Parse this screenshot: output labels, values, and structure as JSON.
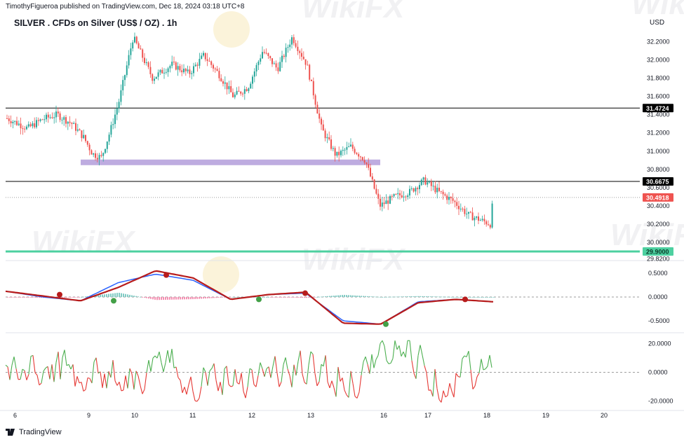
{
  "publisher_line": "TimothyFigueroa published on TradingView.com, Dec 18, 2024 03:18 UTC+8",
  "header": {
    "title": "SILVER . CFDs on Silver (US$ / OZ) . 1h",
    "currency": "USD"
  },
  "footer": {
    "brand": "TradingView"
  },
  "watermark": "WikiFX",
  "colors": {
    "up": "#26a69a",
    "down": "#ef5350",
    "zone": "#b39ddb",
    "support": "#4dd0a0",
    "macd": "#2962ff",
    "signal": "#b71c1c",
    "signal_up": "#43a047",
    "osc_up": "#4caf50",
    "osc_down": "#e53935",
    "price_badge": "#ef5350"
  },
  "chart_data": [
    {
      "type": "candlestick",
      "title": "SILVER . CFDs on Silver (US$ / OZ) . 1h",
      "x_ticks": [
        "6",
        "9",
        "10",
        "11",
        "12",
        "13",
        "16",
        "17",
        "18",
        "19",
        "20"
      ],
      "y_ticks": [
        "32.2000",
        "32.0000",
        "31.8000",
        "31.6000",
        "31.4000",
        "31.2000",
        "31.0000",
        "30.8000",
        "30.6000",
        "30.4000",
        "30.2000",
        "30.0000",
        "29.8200"
      ],
      "ylim": [
        29.8,
        32.35
      ],
      "horizontal_lines": [
        {
          "value": 31.4724,
          "label": "31.4724",
          "color": "#000000"
        },
        {
          "value": 30.6675,
          "label": "30.6675",
          "color": "#000000"
        },
        {
          "value": 29.9,
          "label": "29.9000",
          "color": "#4dd0a0"
        }
      ],
      "zone": {
        "from": 30.86,
        "to": 30.9
      },
      "last_price": {
        "value": 30.4918,
        "label": "30.4918"
      },
      "path_points": [
        {
          "x": "6",
          "y": 31.36
        },
        {
          "x": "6",
          "y": 31.25
        },
        {
          "x": "6",
          "y": 31.35
        },
        {
          "x": "6",
          "y": 31.4
        },
        {
          "x": "6",
          "y": 31.3
        },
        {
          "x": "9",
          "y": 31.15
        },
        {
          "x": "9",
          "y": 30.97
        },
        {
          "x": "9",
          "y": 30.93
        },
        {
          "x": "9",
          "y": 31.22
        },
        {
          "x": "9",
          "y": 31.55
        },
        {
          "x": "10",
          "y": 32.25
        },
        {
          "x": "10",
          "y": 31.8
        },
        {
          "x": "10",
          "y": 31.95
        },
        {
          "x": "11",
          "y": 31.85
        },
        {
          "x": "11",
          "y": 32.05
        },
        {
          "x": "11",
          "y": 31.85
        },
        {
          "x": "11",
          "y": 31.6
        },
        {
          "x": "12",
          "y": 31.7
        },
        {
          "x": "12",
          "y": 32.1
        },
        {
          "x": "12",
          "y": 31.9
        },
        {
          "x": "12",
          "y": 32.25
        },
        {
          "x": "13",
          "y": 31.95
        },
        {
          "x": "13",
          "y": 31.25
        },
        {
          "x": "13",
          "y": 30.95
        },
        {
          "x": "13",
          "y": 31.05
        },
        {
          "x": "13",
          "y": 30.9
        },
        {
          "x": "16",
          "y": 30.4
        },
        {
          "x": "16",
          "y": 30.5
        },
        {
          "x": "16",
          "y": 30.55
        },
        {
          "x": "17",
          "y": 30.68
        },
        {
          "x": "17",
          "y": 30.55
        },
        {
          "x": "17",
          "y": 30.45
        },
        {
          "x": "17",
          "y": 30.3
        },
        {
          "x": "18",
          "y": 30.2
        },
        {
          "x": "18",
          "y": 30.49
        }
      ]
    },
    {
      "type": "line",
      "name": "MACD",
      "y_ticks": [
        "0.5000",
        "0.0000",
        "-0.5000"
      ],
      "ylim": [
        -0.75,
        0.72
      ],
      "series": [
        {
          "role": "macd",
          "x": [
            "6",
            "9",
            "9",
            "10",
            "10",
            "11",
            "12",
            "12",
            "13",
            "13",
            "16",
            "17",
            "17",
            "18"
          ],
          "values": [
            0.12,
            0.0,
            -0.08,
            0.3,
            0.48,
            0.35,
            -0.05,
            0.05,
            0.08,
            -0.5,
            -0.57,
            -0.1,
            -0.05,
            -0.1
          ]
        },
        {
          "role": "signal",
          "x": [
            "6",
            "9",
            "9",
            "10",
            "10",
            "11",
            "12",
            "12",
            "13",
            "13",
            "16",
            "17",
            "17",
            "18"
          ],
          "values": [
            0.12,
            0.02,
            -0.08,
            0.2,
            0.55,
            0.4,
            -0.05,
            0.05,
            0.1,
            -0.55,
            -0.57,
            -0.12,
            -0.05,
            -0.1
          ]
        }
      ],
      "cross_markers": [
        {
          "x": "9",
          "y": 0.05,
          "kind": "down"
        },
        {
          "x": "9",
          "y": -0.08,
          "kind": "up"
        },
        {
          "x": "10",
          "y": 0.46,
          "kind": "down"
        },
        {
          "x": "12",
          "y": -0.05,
          "kind": "up"
        },
        {
          "x": "13",
          "y": 0.08,
          "kind": "down"
        },
        {
          "x": "16",
          "y": -0.57,
          "kind": "up"
        },
        {
          "x": "17",
          "y": -0.05,
          "kind": "down"
        }
      ]
    },
    {
      "type": "line",
      "name": "Oscillator",
      "y_ticks": [
        "20.0000",
        "0.0000",
        "-20.0000"
      ],
      "ylim": [
        -25,
        26
      ],
      "values_note_free": true,
      "x_range": [
        "6",
        "18"
      ]
    }
  ]
}
